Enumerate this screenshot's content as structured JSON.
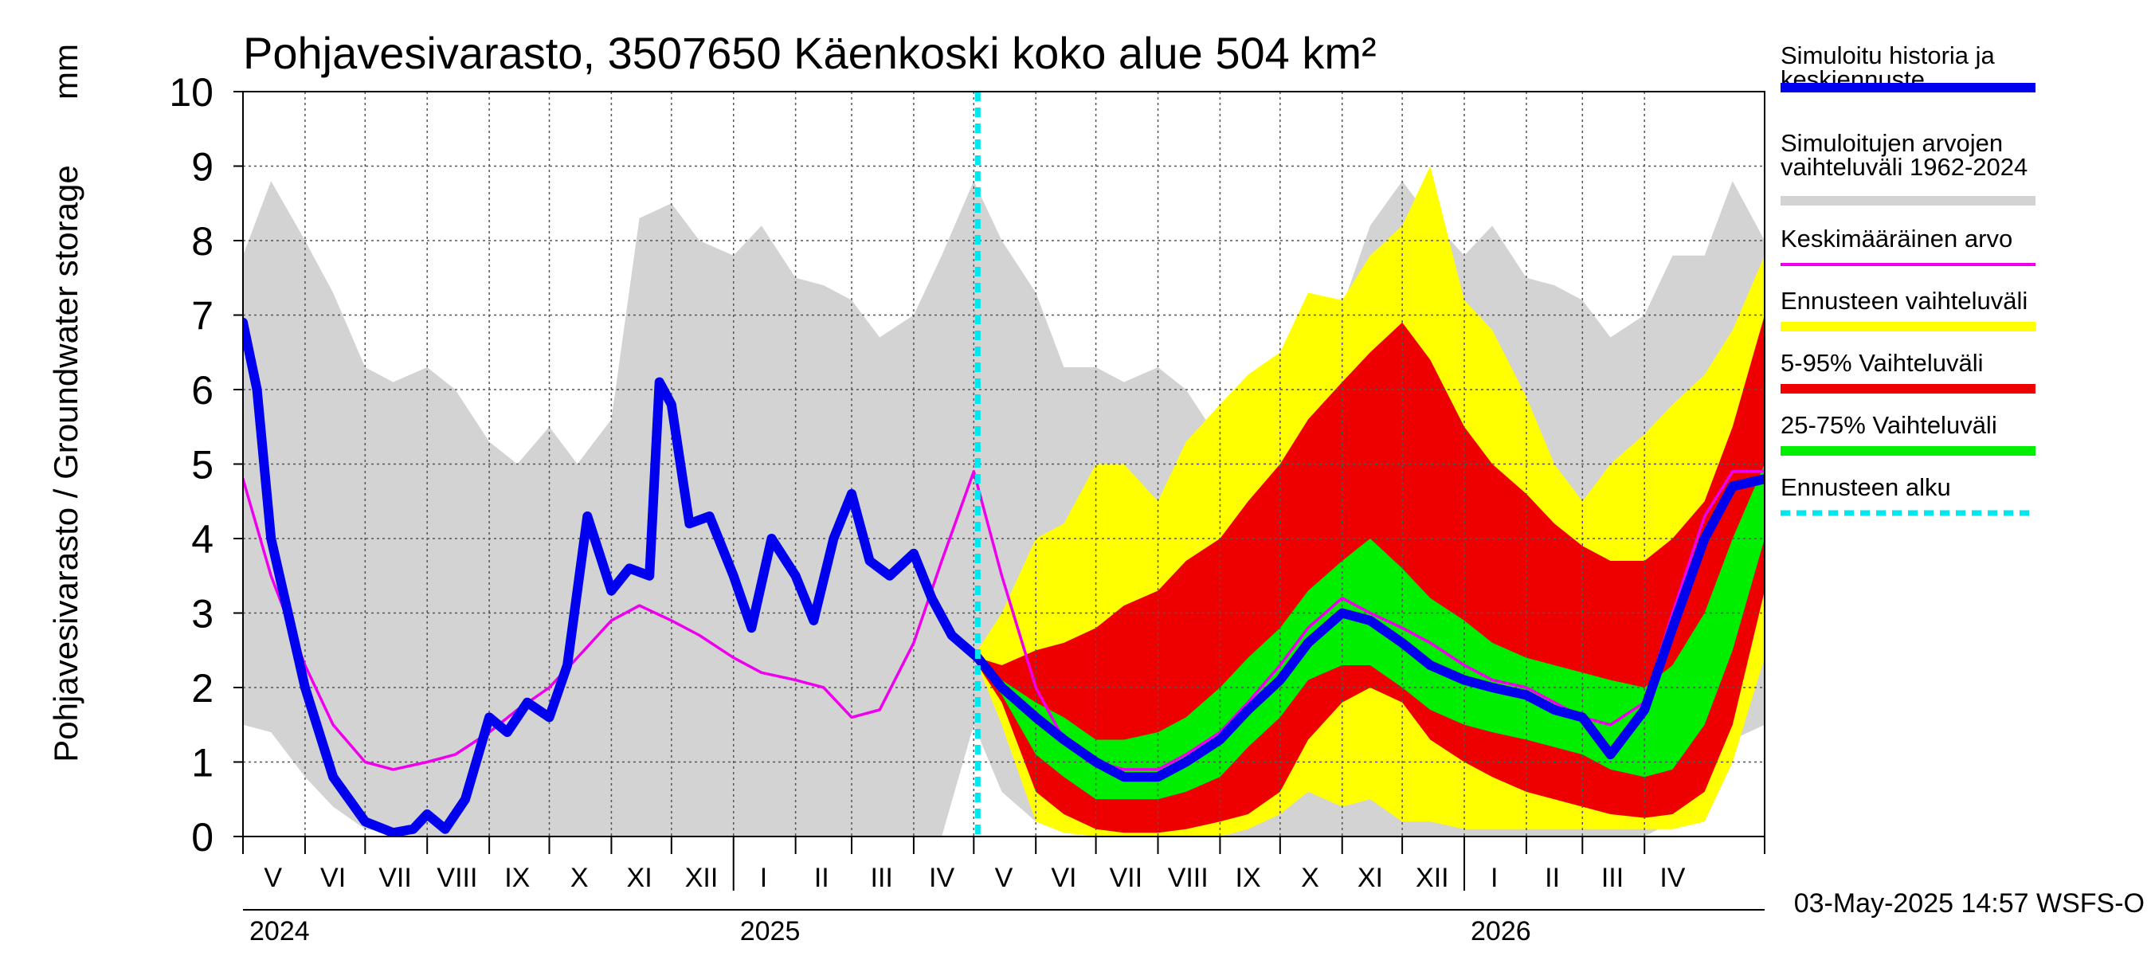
{
  "chart_data": {
    "type": "area",
    "title": "Pohjavesivarasto, 3507650 Käenkoski koko alue 504 km²",
    "ylabel": "Pohjavesivarasto / Groundwater storage",
    "yunit": "mm",
    "ylim": [
      0,
      10
    ],
    "yticks": [
      0,
      1,
      2,
      3,
      4,
      5,
      6,
      7,
      8,
      9,
      10
    ],
    "xlim": [
      "2024-05-01",
      "2026-05-31"
    ],
    "month_labels": [
      {
        "label": "V",
        "date": "2024-05-16"
      },
      {
        "label": "VI",
        "date": "2024-06-15"
      },
      {
        "label": "VII",
        "date": "2024-07-16"
      },
      {
        "label": "VIII",
        "date": "2024-08-16"
      },
      {
        "label": "IX",
        "date": "2024-09-15"
      },
      {
        "label": "X",
        "date": "2024-10-16"
      },
      {
        "label": "XI",
        "date": "2024-11-15"
      },
      {
        "label": "XII",
        "date": "2024-12-16"
      },
      {
        "label": "I",
        "date": "2025-01-16"
      },
      {
        "label": "II",
        "date": "2025-02-14"
      },
      {
        "label": "III",
        "date": "2025-03-16"
      },
      {
        "label": "IV",
        "date": "2025-04-15"
      },
      {
        "label": "V",
        "date": "2025-05-16"
      },
      {
        "label": "VI",
        "date": "2025-06-15"
      },
      {
        "label": "VII",
        "date": "2025-07-16"
      },
      {
        "label": "VIII",
        "date": "2025-08-16"
      },
      {
        "label": "IX",
        "date": "2025-09-15"
      },
      {
        "label": "X",
        "date": "2025-10-16"
      },
      {
        "label": "XI",
        "date": "2025-11-15"
      },
      {
        "label": "XII",
        "date": "2025-12-16"
      },
      {
        "label": "I",
        "date": "2026-01-16"
      },
      {
        "label": "II",
        "date": "2026-02-14"
      },
      {
        "label": "III",
        "date": "2026-03-16"
      },
      {
        "label": "IV",
        "date": "2026-04-15"
      }
    ],
    "year_labels": [
      {
        "label": "2024",
        "date": "2024-05-01"
      },
      {
        "label": "2025",
        "date": "2025-01-01"
      },
      {
        "label": "2026",
        "date": "2026-01-01"
      }
    ],
    "forecast_start": "2025-05-03",
    "legend_position": "right",
    "legend": [
      {
        "key": "history",
        "label": "Simuloitu historia ja keskiennuste",
        "color": "#0000ee"
      },
      {
        "key": "range",
        "label": "Simuloitujen arvojen vaihteluväli 1962-2024",
        "color": "#d3d3d3"
      },
      {
        "key": "mean",
        "label": "Keskimääräinen arvo",
        "color": "#ee00ee"
      },
      {
        "key": "forecast_range",
        "label": "Ennusteen vaihteluväli",
        "color": "#ffff00"
      },
      {
        "key": "p5_95",
        "label": "5-95% Vaihteluväli",
        "color": "#ee0000"
      },
      {
        "key": "p25_75",
        "label": "25-75% Vaihteluväli",
        "color": "#00ee00"
      },
      {
        "key": "forecast_start",
        "label": "Ennusteen alku",
        "color": "#00e5ee"
      }
    ],
    "series": {
      "range": {
        "x": [
          "2024-05-01",
          "2024-05-15",
          "2024-06-01",
          "2024-06-15",
          "2024-07-01",
          "2024-07-15",
          "2024-08-01",
          "2024-08-15",
          "2024-09-01",
          "2024-09-15",
          "2024-10-01",
          "2024-10-15",
          "2024-11-01",
          "2024-11-15",
          "2024-12-01",
          "2024-12-15",
          "2025-01-01",
          "2025-01-15",
          "2025-02-01",
          "2025-02-15",
          "2025-03-01",
          "2025-03-15",
          "2025-04-01",
          "2025-04-15",
          "2025-05-01",
          "2025-05-15",
          "2025-06-01",
          "2025-06-15",
          "2025-07-01",
          "2025-07-15",
          "2025-08-01",
          "2025-08-15",
          "2025-09-01",
          "2025-09-15",
          "2025-10-01",
          "2025-10-15",
          "2025-11-01",
          "2025-11-15",
          "2025-12-01",
          "2025-12-15",
          "2026-01-01",
          "2026-01-15",
          "2026-02-01",
          "2026-02-15",
          "2026-03-01",
          "2026-03-15",
          "2026-04-01",
          "2026-04-15",
          "2026-05-01",
          "2026-05-15",
          "2026-05-31"
        ],
        "max": [
          7.8,
          8.8,
          8.0,
          7.3,
          6.3,
          6.1,
          6.3,
          6.0,
          5.3,
          5.0,
          5.5,
          5.0,
          5.6,
          8.3,
          8.5,
          8.0,
          7.8,
          8.2,
          7.5,
          7.4,
          7.2,
          6.7,
          7.0,
          7.8,
          8.8,
          8.0,
          7.3,
          6.3,
          6.3,
          6.1,
          6.3,
          6.0,
          5.3,
          5.0,
          5.5,
          6.8,
          7.1,
          8.2,
          8.8,
          8.3,
          7.8,
          8.2,
          7.5,
          7.4,
          7.2,
          6.7,
          7.0,
          7.8,
          7.8,
          8.8,
          8.0
        ],
        "min": [
          1.5,
          1.4,
          0.8,
          0.4,
          0.1,
          0.05,
          0.0,
          0.0,
          0.0,
          0.0,
          0.0,
          0.0,
          0.0,
          0.0,
          0.0,
          0.0,
          0.0,
          0.0,
          0.0,
          0.0,
          0.0,
          0.0,
          0.0,
          0.0,
          1.5,
          0.6,
          0.2,
          0.05,
          0.0,
          0.0,
          0.0,
          0.0,
          0.0,
          0.0,
          0.0,
          0.0,
          0.0,
          0.0,
          0.0,
          0.0,
          0.0,
          0.0,
          0.0,
          0.0,
          0.0,
          0.0,
          0.0,
          0.2,
          1.5,
          1.3,
          1.5
        ]
      },
      "forecast_range": {
        "x": [
          "2025-05-03",
          "2025-05-15",
          "2025-06-01",
          "2025-06-15",
          "2025-07-01",
          "2025-07-15",
          "2025-08-01",
          "2025-08-15",
          "2025-09-01",
          "2025-09-15",
          "2025-10-01",
          "2025-10-15",
          "2025-11-01",
          "2025-11-15",
          "2025-12-01",
          "2025-12-15",
          "2026-01-01",
          "2026-01-15",
          "2026-02-01",
          "2026-02-15",
          "2026-03-01",
          "2026-03-15",
          "2026-04-01",
          "2026-04-15",
          "2026-05-01",
          "2026-05-15",
          "2026-05-31"
        ],
        "max": [
          2.5,
          3.0,
          4.0,
          4.2,
          5.0,
          5.0,
          4.5,
          5.3,
          5.8,
          6.2,
          6.5,
          7.3,
          7.2,
          7.8,
          8.2,
          9.0,
          7.2,
          6.8,
          5.9,
          5.0,
          4.5,
          5.0,
          5.4,
          5.8,
          6.2,
          6.8,
          7.8
        ],
        "min": [
          2.3,
          1.5,
          0.2,
          0.05,
          0.0,
          0.0,
          0.0,
          0.0,
          0.0,
          0.1,
          0.3,
          0.6,
          0.4,
          0.5,
          0.2,
          0.2,
          0.1,
          0.1,
          0.1,
          0.1,
          0.1,
          0.1,
          0.1,
          0.1,
          0.2,
          1.0,
          2.4
        ]
      },
      "p5_95": {
        "x": [
          "2025-05-03",
          "2025-05-15",
          "2025-06-01",
          "2025-06-15",
          "2025-07-01",
          "2025-07-15",
          "2025-08-01",
          "2025-08-15",
          "2025-09-01",
          "2025-09-15",
          "2025-10-01",
          "2025-10-15",
          "2025-11-01",
          "2025-11-15",
          "2025-12-01",
          "2025-12-15",
          "2026-01-01",
          "2026-01-15",
          "2026-02-01",
          "2026-02-15",
          "2026-03-01",
          "2026-03-15",
          "2026-04-01",
          "2026-04-15",
          "2026-05-01",
          "2026-05-15",
          "2026-05-31"
        ],
        "high": [
          2.4,
          2.3,
          2.5,
          2.6,
          2.8,
          3.1,
          3.3,
          3.7,
          4.0,
          4.5,
          5.0,
          5.6,
          6.1,
          6.5,
          6.9,
          6.4,
          5.5,
          5.0,
          4.6,
          4.2,
          3.9,
          3.7,
          3.7,
          4.0,
          4.5,
          5.5,
          7.0
        ],
        "low": [
          2.3,
          1.8,
          0.6,
          0.3,
          0.1,
          0.05,
          0.05,
          0.1,
          0.2,
          0.3,
          0.6,
          1.3,
          1.8,
          2.0,
          1.8,
          1.3,
          1.0,
          0.8,
          0.6,
          0.5,
          0.4,
          0.3,
          0.25,
          0.3,
          0.6,
          1.5,
          3.3
        ]
      },
      "p25_75": {
        "x": [
          "2025-05-03",
          "2025-05-15",
          "2025-06-01",
          "2025-06-15",
          "2025-07-01",
          "2025-07-15",
          "2025-08-01",
          "2025-08-15",
          "2025-09-01",
          "2025-09-15",
          "2025-10-01",
          "2025-10-15",
          "2025-11-01",
          "2025-11-15",
          "2025-12-01",
          "2025-12-15",
          "2026-01-01",
          "2026-01-15",
          "2026-02-01",
          "2026-02-15",
          "2026-03-01",
          "2026-03-15",
          "2026-04-01",
          "2026-04-15",
          "2026-05-01",
          "2026-05-15",
          "2026-05-31"
        ],
        "high": [
          2.4,
          2.1,
          1.8,
          1.6,
          1.3,
          1.3,
          1.4,
          1.6,
          2.0,
          2.4,
          2.8,
          3.3,
          3.7,
          4.0,
          3.6,
          3.2,
          2.9,
          2.6,
          2.4,
          2.3,
          2.2,
          2.1,
          2.0,
          2.3,
          3.0,
          4.0,
          5.0
        ],
        "low": [
          2.3,
          1.9,
          1.1,
          0.8,
          0.5,
          0.5,
          0.5,
          0.6,
          0.8,
          1.2,
          1.6,
          2.1,
          2.3,
          2.3,
          2.0,
          1.7,
          1.5,
          1.4,
          1.3,
          1.2,
          1.1,
          0.9,
          0.8,
          0.9,
          1.5,
          2.5,
          4.0
        ]
      },
      "mean": {
        "x": [
          "2024-05-01",
          "2024-05-15",
          "2024-06-01",
          "2024-06-15",
          "2024-07-01",
          "2024-07-15",
          "2024-08-01",
          "2024-08-15",
          "2024-09-01",
          "2024-09-15",
          "2024-10-01",
          "2024-10-15",
          "2024-11-01",
          "2024-11-15",
          "2024-12-01",
          "2024-12-15",
          "2025-01-01",
          "2025-01-15",
          "2025-02-01",
          "2025-02-15",
          "2025-03-01",
          "2025-03-15",
          "2025-04-01",
          "2025-04-15",
          "2025-05-01",
          "2025-05-15",
          "2025-06-01",
          "2025-06-15",
          "2025-07-01",
          "2025-07-15",
          "2025-08-01",
          "2025-08-15",
          "2025-09-01",
          "2025-09-15",
          "2025-10-01",
          "2025-10-15",
          "2025-11-01",
          "2025-11-15",
          "2025-12-01",
          "2025-12-15",
          "2026-01-01",
          "2026-01-15",
          "2026-02-01",
          "2026-02-15",
          "2026-03-01",
          "2026-03-15",
          "2026-04-01",
          "2026-04-15",
          "2026-05-01",
          "2026-05-15",
          "2026-05-31"
        ],
        "values": [
          4.8,
          3.5,
          2.3,
          1.5,
          1.0,
          0.9,
          1.0,
          1.1,
          1.4,
          1.7,
          2.0,
          2.4,
          2.9,
          3.1,
          2.9,
          2.7,
          2.4,
          2.2,
          2.1,
          2.0,
          1.6,
          1.7,
          2.6,
          3.7,
          4.9,
          3.5,
          2.0,
          1.3,
          1.0,
          0.9,
          0.9,
          1.1,
          1.4,
          1.8,
          2.3,
          2.8,
          3.2,
          3.0,
          2.8,
          2.6,
          2.3,
          2.1,
          2.0,
          1.8,
          1.6,
          1.5,
          1.8,
          3.0,
          4.3,
          4.9,
          4.9
        ]
      },
      "history": {
        "x": [
          "2024-05-01",
          "2024-05-08",
          "2024-05-15",
          "2024-06-01",
          "2024-06-15",
          "2024-07-01",
          "2024-07-15",
          "2024-07-25",
          "2024-08-01",
          "2024-08-10",
          "2024-08-20",
          "2024-09-01",
          "2024-09-10",
          "2024-09-20",
          "2024-10-01",
          "2024-10-10",
          "2024-10-20",
          "2024-11-01",
          "2024-11-10",
          "2024-11-20",
          "2024-11-25",
          "2024-12-01",
          "2024-12-10",
          "2024-12-20",
          "2025-01-01",
          "2025-01-10",
          "2025-01-20",
          "2025-02-01",
          "2025-02-10",
          "2025-02-20",
          "2025-03-01",
          "2025-03-10",
          "2025-03-20",
          "2025-04-01",
          "2025-04-10",
          "2025-04-20",
          "2025-05-03",
          "2025-05-15",
          "2025-06-01",
          "2025-06-15",
          "2025-07-01",
          "2025-07-15",
          "2025-08-01",
          "2025-08-15",
          "2025-09-01",
          "2025-09-15",
          "2025-10-01",
          "2025-10-15",
          "2025-11-01",
          "2025-11-15",
          "2025-12-01",
          "2025-12-15",
          "2026-01-01",
          "2026-01-15",
          "2026-02-01",
          "2026-02-15",
          "2026-03-01",
          "2026-03-15",
          "2026-04-01",
          "2026-04-15",
          "2026-05-01",
          "2026-05-15",
          "2026-05-31"
        ],
        "values": [
          6.9,
          6.0,
          4.0,
          2.0,
          0.8,
          0.2,
          0.05,
          0.1,
          0.3,
          0.1,
          0.5,
          1.6,
          1.4,
          1.8,
          1.6,
          2.3,
          4.3,
          3.3,
          3.6,
          3.5,
          6.1,
          5.8,
          4.2,
          4.3,
          3.5,
          2.8,
          4.0,
          3.5,
          2.9,
          4.0,
          4.6,
          3.7,
          3.5,
          3.8,
          3.2,
          2.7,
          2.4,
          2.0,
          1.6,
          1.3,
          1.0,
          0.8,
          0.8,
          1.0,
          1.3,
          1.7,
          2.1,
          2.6,
          3.0,
          2.9,
          2.6,
          2.3,
          2.1,
          2.0,
          1.9,
          1.7,
          1.6,
          1.1,
          1.7,
          2.8,
          4.0,
          4.7,
          4.8
        ]
      }
    }
  },
  "footer": {
    "timestamp": "03-May-2025 14:57 WSFS-O"
  }
}
